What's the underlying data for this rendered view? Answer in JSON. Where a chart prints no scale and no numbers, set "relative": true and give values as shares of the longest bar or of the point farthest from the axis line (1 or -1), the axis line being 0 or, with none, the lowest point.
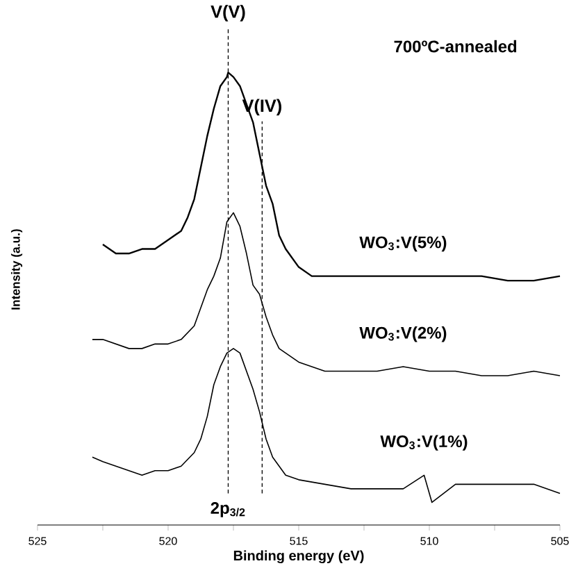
{
  "chart_data": {
    "type": "line",
    "relative": true,
    "xlabel": "Binding energy (eV)",
    "ylabel": "Intensity (a.u.)",
    "xlim": [
      525,
      505
    ],
    "xticks": [
      525,
      {
        "value": 522.5,
        "label": null
      },
      520,
      {
        "value": 517.5,
        "label": null
      },
      515,
      {
        "value": 512.5,
        "label": null
      },
      510,
      {
        "value": 507.5,
        "label": null
      },
      505
    ],
    "annotations": [
      "700ºC-annealed",
      "2p$_{3/2}$"
    ],
    "ref_lines": [
      {
        "axis": "x",
        "value": 517.7,
        "label": "V(V)",
        "color": "#000000",
        "line_style": "dashed"
      },
      {
        "axis": "x",
        "value": 516.4,
        "label": "V(IV)",
        "color": "#000000",
        "line_style": "dashed"
      }
    ],
    "series": [
      {
        "name": "WO$_{3}$:V(5%)",
        "color": "#000000",
        "x": [
          522.5,
          522,
          521.5,
          521,
          520.5,
          520,
          519.5,
          519.25,
          519,
          518.75,
          518.5,
          518.25,
          518,
          517.75,
          517.7,
          517.5,
          517.25,
          517,
          516.75,
          516.5,
          516.25,
          516,
          515.75,
          515.5,
          515,
          514.5,
          514,
          513,
          512,
          511,
          510,
          509,
          508,
          507,
          506,
          505
        ],
        "values": [
          0.62,
          0.6,
          0.6,
          0.61,
          0.61,
          0.63,
          0.65,
          0.68,
          0.72,
          0.79,
          0.86,
          0.92,
          0.97,
          0.99,
          1.0,
          0.99,
          0.97,
          0.93,
          0.89,
          0.82,
          0.75,
          0.71,
          0.64,
          0.61,
          0.57,
          0.55,
          0.55,
          0.55,
          0.55,
          0.55,
          0.55,
          0.55,
          0.55,
          0.54,
          0.54,
          0.55
        ]
      },
      {
        "name": "WO$_{3}$:V(2%)",
        "color": "#000000",
        "x": [
          522.9,
          522.5,
          522,
          521.5,
          521,
          520.5,
          520,
          519.5,
          519,
          518.75,
          518.5,
          518.25,
          518,
          517.75,
          517.5,
          517.25,
          517,
          516.75,
          516.5,
          516.25,
          516,
          515.75,
          515.5,
          515,
          514.5,
          514,
          513,
          512,
          511,
          510,
          509,
          508,
          507,
          506,
          505
        ],
        "values": [
          0.41,
          0.41,
          0.4,
          0.39,
          0.39,
          0.4,
          0.4,
          0.41,
          0.44,
          0.48,
          0.52,
          0.55,
          0.59,
          0.67,
          0.69,
          0.66,
          0.6,
          0.53,
          0.51,
          0.46,
          0.42,
          0.39,
          0.38,
          0.36,
          0.35,
          0.34,
          0.34,
          0.34,
          0.35,
          0.34,
          0.34,
          0.33,
          0.33,
          0.34,
          0.33
        ]
      },
      {
        "name": "WO$_{3}$:V(1%)",
        "color": "#000000",
        "x": [
          522.9,
          522.5,
          522,
          521.5,
          521,
          520.5,
          520,
          519.5,
          519,
          518.75,
          518.5,
          518.25,
          518,
          517.75,
          517.5,
          517.25,
          517,
          516.75,
          516.5,
          516.25,
          516,
          515.75,
          515.5,
          515,
          514,
          513,
          512,
          511,
          510.2,
          509.9,
          509,
          508,
          507,
          506,
          505
        ],
        "values": [
          0.15,
          0.14,
          0.13,
          0.12,
          0.11,
          0.12,
          0.12,
          0.13,
          0.16,
          0.19,
          0.24,
          0.31,
          0.35,
          0.38,
          0.39,
          0.38,
          0.34,
          0.3,
          0.25,
          0.19,
          0.15,
          0.13,
          0.11,
          0.1,
          0.09,
          0.08,
          0.08,
          0.08,
          0.11,
          0.05,
          0.09,
          0.09,
          0.09,
          0.09,
          0.07
        ]
      }
    ]
  }
}
